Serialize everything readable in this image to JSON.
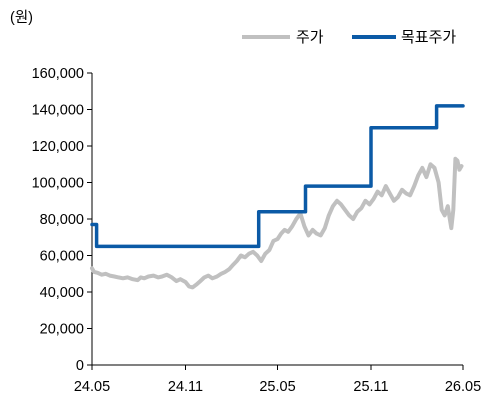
{
  "chart_data": {
    "type": "line",
    "ylabel": "(원)",
    "ylim": [
      0,
      160000
    ],
    "yticks": [
      0,
      20000,
      40000,
      60000,
      80000,
      100000,
      120000,
      140000,
      160000
    ],
    "ytick_labels": [
      "0",
      "20,000",
      "40,000",
      "60,000",
      "80,000",
      "100,000",
      "120,000",
      "140,000",
      "160,000"
    ],
    "xlim": [
      "2024-05",
      "2026-05"
    ],
    "xticks": [
      "2024-05",
      "2024-11",
      "2025-05",
      "2025-11",
      "2026-05"
    ],
    "xtick_labels": [
      "24.05",
      "24.11",
      "25.05",
      "25.11",
      "26.05"
    ],
    "legend": {
      "placement": "top-right"
    },
    "grid": false,
    "series": [
      {
        "name": "주가",
        "color": "#c0c0c0",
        "x": [
          "2024-05-01",
          "2024-05-05",
          "2024-05-12",
          "2024-05-20",
          "2024-05-28",
          "2024-06-05",
          "2024-06-14",
          "2024-06-22",
          "2024-07-01",
          "2024-07-10",
          "2024-07-20",
          "2024-07-30",
          "2024-08-05",
          "2024-08-12",
          "2024-08-20",
          "2024-08-30",
          "2024-09-08",
          "2024-09-16",
          "2024-09-25",
          "2024-10-05",
          "2024-10-14",
          "2024-10-22",
          "2024-11-01",
          "2024-11-08",
          "2024-11-15",
          "2024-11-22",
          "2024-11-30",
          "2024-12-08",
          "2024-12-16",
          "2024-12-24",
          "2025-01-02",
          "2025-01-10",
          "2025-01-18",
          "2025-01-26",
          "2025-02-03",
          "2025-02-10",
          "2025-02-18",
          "2025-02-26",
          "2025-03-06",
          "2025-03-14",
          "2025-03-22",
          "2025-03-30",
          "2025-04-07",
          "2025-04-15",
          "2025-04-23",
          "2025-05-01",
          "2025-05-08",
          "2025-05-15",
          "2025-05-22",
          "2025-05-30",
          "2025-06-07",
          "2025-06-15",
          "2025-06-23",
          "2025-07-01",
          "2025-07-09",
          "2025-07-17",
          "2025-07-25",
          "2025-08-02",
          "2025-08-10",
          "2025-08-18",
          "2025-08-26",
          "2025-09-03",
          "2025-09-11",
          "2025-09-19",
          "2025-09-27",
          "2025-10-05",
          "2025-10-13",
          "2025-10-21",
          "2025-10-29",
          "2025-11-06",
          "2025-11-14",
          "2025-11-22",
          "2025-11-30",
          "2025-12-08",
          "2025-12-16",
          "2025-12-24",
          "2026-01-01",
          "2026-01-09",
          "2026-01-17",
          "2026-01-25",
          "2026-02-02",
          "2026-02-10",
          "2026-02-18",
          "2026-02-26",
          "2026-03-06",
          "2026-03-14",
          "2026-03-20",
          "2026-03-26",
          "2026-04-01",
          "2026-04-05",
          "2026-04-08",
          "2026-04-12",
          "2026-04-16",
          "2026-04-20",
          "2026-04-24",
          "2026-04-28"
        ],
        "values": [
          53000,
          51000,
          50500,
          49500,
          50000,
          49000,
          48500,
          48000,
          47500,
          48000,
          47000,
          46500,
          48000,
          47500,
          48500,
          49000,
          48000,
          48500,
          49500,
          48000,
          46000,
          47000,
          45500,
          43000,
          42500,
          44000,
          46000,
          48000,
          49000,
          47500,
          48500,
          50000,
          51000,
          52500,
          55000,
          57000,
          60000,
          59000,
          61000,
          62000,
          60000,
          57000,
          61000,
          63000,
          68000,
          69000,
          72000,
          74000,
          73000,
          76000,
          80000,
          83000,
          76000,
          71000,
          74000,
          72000,
          71000,
          75000,
          82000,
          87000,
          90000,
          88000,
          85000,
          82000,
          80000,
          84000,
          86000,
          90000,
          88000,
          91000,
          95000,
          93000,
          98000,
          94000,
          90000,
          92000,
          96000,
          94000,
          93000,
          98000,
          104000,
          108000,
          103000,
          110000,
          108000,
          100000,
          85000,
          82000,
          87000,
          80000,
          75000,
          85000,
          113000,
          112000,
          107000,
          109000
        ]
      },
      {
        "name": "목표주가",
        "color": "#0b5aa6",
        "x": [
          "2024-05-01",
          "2024-05-10",
          "2024-05-10",
          "2025-03-25",
          "2025-03-25",
          "2025-06-25",
          "2025-06-25",
          "2025-11-01",
          "2025-11-01",
          "2026-03-10",
          "2026-03-10",
          "2026-05-01"
        ],
        "values": [
          77000,
          77000,
          65000,
          65000,
          84000,
          84000,
          98000,
          98000,
          130000,
          130000,
          142000,
          142000
        ]
      }
    ]
  }
}
